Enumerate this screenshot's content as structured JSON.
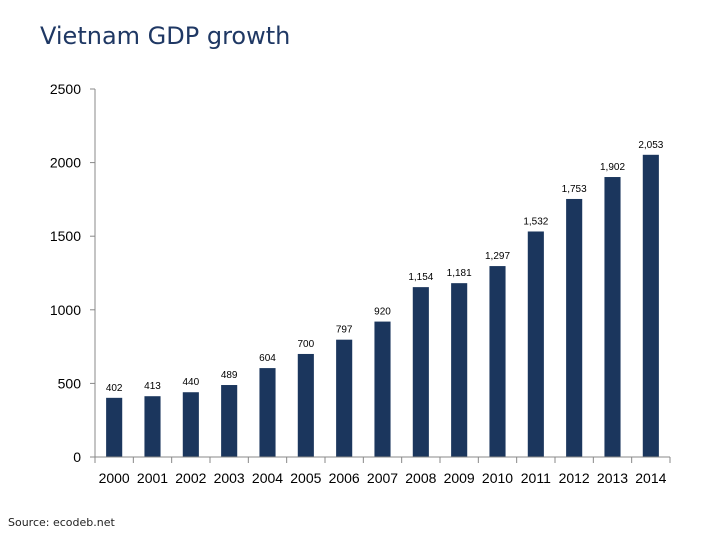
{
  "title": "Vietnam GDP growth",
  "source": "Source:  ecodeb.net",
  "colors": {
    "bar": "#1b365d",
    "axis": "#888888",
    "title": "#1f3864"
  },
  "chart_data": {
    "type": "bar",
    "title": "Vietnam GDP growth",
    "xlabel": "",
    "ylabel": "",
    "categories": [
      "2000",
      "2001",
      "2002",
      "2003",
      "2004",
      "2005",
      "2006",
      "2007",
      "2008",
      "2009",
      "2010",
      "2011",
      "2012",
      "2013",
      "2014"
    ],
    "values": [
      402,
      413,
      440,
      489,
      604,
      700,
      797,
      920,
      1154,
      1181,
      1297,
      1532,
      1753,
      1902,
      2053
    ],
    "data_labels": [
      "402",
      "413",
      "440",
      "489",
      "604",
      "700",
      "797",
      "920",
      "1,154",
      "1,181",
      "1,297",
      "1,532",
      "1,753",
      "1,902",
      "2,053"
    ],
    "ylim": [
      0,
      2500
    ],
    "yticks": [
      0,
      500,
      1000,
      1500,
      2000,
      2500
    ],
    "grid": false,
    "legend": "none"
  }
}
